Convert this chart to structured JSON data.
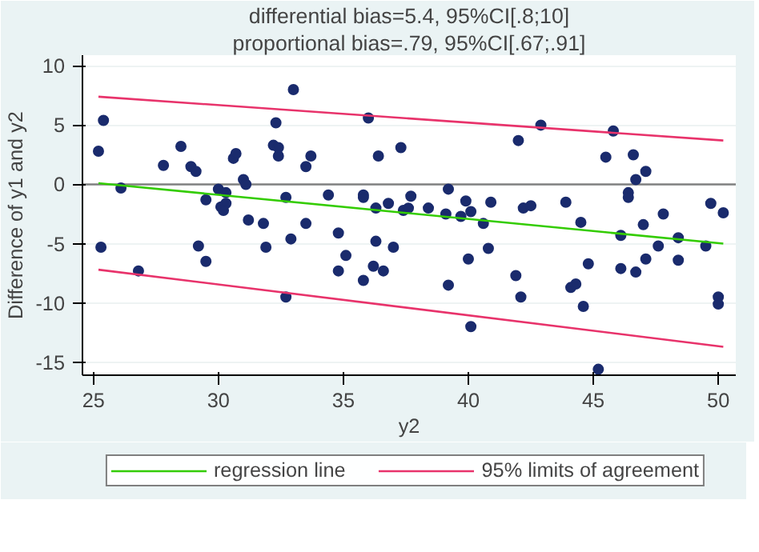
{
  "chart_data": {
    "type": "scatter",
    "title": "differential bias=5.4, 95%CI[.8;10]",
    "subtitle": "proportional bias=.79, 95%CI[.67;.91]",
    "xlabel": "y2",
    "ylabel": "Difference of y1 and y2",
    "xlim": [
      24.56,
      50.7
    ],
    "ylim": [
      -16.1,
      10.9
    ],
    "xticks": [
      25,
      30,
      35,
      40,
      45,
      50
    ],
    "yticks": [
      -15,
      -10,
      -5,
      0,
      5,
      10
    ],
    "grid": "y",
    "legend": "bottom",
    "ref_lines": [
      {
        "axis": "y",
        "value": 0,
        "color": "#808080"
      }
    ],
    "series": [
      {
        "marker": "circle",
        "color": "#1a2b6d",
        "x": [
          25.4,
          25.2,
          25.3,
          26.1,
          26.8,
          27.8,
          28.5,
          28.9,
          29.1,
          29.5,
          29.2,
          29.5,
          30.0,
          30.3,
          30.1,
          30.3,
          30.2,
          30.6,
          30.7,
          31.0,
          31.1,
          31.2,
          31.8,
          31.9,
          32.3,
          32.2,
          32.4,
          32.4,
          33.0,
          32.7,
          32.9,
          32.7,
          33.5,
          33.5,
          33.7,
          36.0,
          36.4,
          37.3,
          34.4,
          35.8,
          35.8,
          36.3,
          36.8,
          37.7,
          37.4,
          37.6,
          38.4,
          39.2,
          39.1,
          39.9,
          40.1,
          39.7,
          40.9,
          40.6,
          34.8,
          35.1,
          34.8,
          36.3,
          37.0,
          36.2,
          36.6,
          35.8,
          39.2,
          40.0,
          40.8,
          40.1,
          42.0,
          42.9,
          42.2,
          42.5,
          41.9,
          42.1,
          45.8,
          45.5,
          46.6,
          47.1,
          46.7,
          46.4,
          46.4,
          43.9,
          44.5,
          47.0,
          47.8,
          49.7,
          50.2,
          46.1,
          48.4,
          47.6,
          49.5,
          44.8,
          46.1,
          47.1,
          48.4,
          46.7,
          44.1,
          44.3,
          44.6,
          50.0,
          50.0,
          45.2
        ],
        "values": [
          5.4,
          2.8,
          -5.3,
          -0.3,
          -7.3,
          1.6,
          3.2,
          1.5,
          1.1,
          -1.3,
          -5.2,
          -6.5,
          -0.4,
          -0.7,
          -1.9,
          -1.6,
          -2.2,
          2.2,
          2.6,
          0.4,
          0,
          -3.0,
          -3.3,
          -5.3,
          5.2,
          3.3,
          3.1,
          2.4,
          8.0,
          -1.1,
          -4.6,
          -9.5,
          -3.3,
          1.5,
          2.4,
          5.6,
          2.4,
          3.1,
          -0.9,
          -0.9,
          -1.1,
          -2.0,
          -1.6,
          -1.0,
          -2.2,
          -2.0,
          -2.0,
          -0.4,
          -2.5,
          -1.4,
          -2.3,
          -2.7,
          -1.5,
          -3.3,
          -4.1,
          -6.0,
          -7.3,
          -4.8,
          -5.3,
          -6.9,
          -7.3,
          -8.1,
          -8.5,
          -6.3,
          -5.4,
          -12.0,
          3.7,
          5.0,
          -2.0,
          -1.8,
          -7.7,
          -9.5,
          4.5,
          2.3,
          2.5,
          1.1,
          0.4,
          -0.7,
          -1.1,
          -1.5,
          -3.2,
          -3.4,
          -2.5,
          -1.6,
          -2.4,
          -4.3,
          -4.5,
          -5.2,
          -5.2,
          -6.7,
          -7.1,
          -6.3,
          -6.4,
          -7.4,
          -8.7,
          -8.4,
          -10.3,
          -9.5,
          -10.1,
          -15.6
        ]
      },
      {
        "type": "line",
        "name": "regression line",
        "color": "#33cc00",
        "x": [
          25.2,
          50.2
        ],
        "values": [
          0.1,
          -5.0
        ]
      },
      {
        "type": "line",
        "name": "95% limits of agreement",
        "color": "#e8336b",
        "x": [
          25.2,
          50.2
        ],
        "values": [
          7.4,
          3.7
        ]
      },
      {
        "type": "line",
        "color": "#e8336b",
        "x": [
          25.2,
          50.2
        ],
        "values": [
          -7.2,
          -13.7
        ]
      }
    ]
  }
}
